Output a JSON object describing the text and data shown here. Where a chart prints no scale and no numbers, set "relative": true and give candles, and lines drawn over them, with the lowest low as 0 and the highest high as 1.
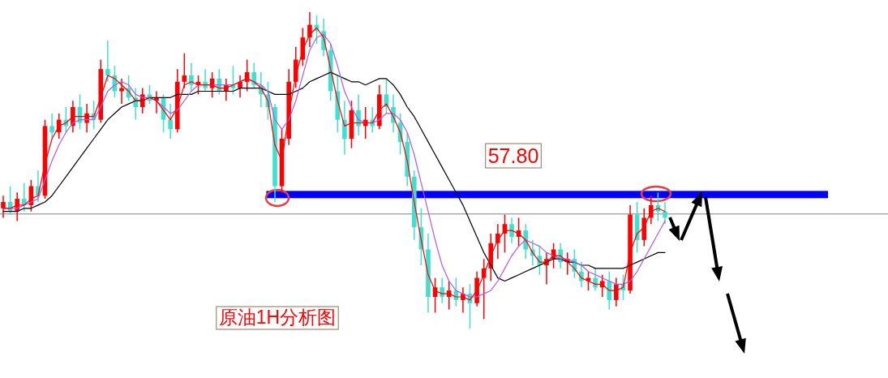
{
  "chart_data": {
    "type": "candlestick",
    "title": "原油1H分析图",
    "relative": true,
    "annotations": [
      "57.80"
    ],
    "bands": [
      {
        "axis": "y",
        "from": 0.412,
        "to": 0.435,
        "color": "#0000ff"
      }
    ],
    "categories": [
      null,
      null,
      null,
      null,
      null,
      null,
      null,
      null,
      null,
      null,
      null,
      null,
      null,
      null,
      null,
      null,
      null,
      null,
      null,
      null,
      null,
      null,
      null,
      null,
      null,
      null,
      null,
      null,
      null,
      null,
      null,
      null,
      null,
      null,
      null,
      null,
      null,
      null,
      null,
      null,
      null,
      null,
      null,
      null,
      null,
      null,
      null,
      null,
      null,
      null,
      null,
      null,
      null,
      null,
      null,
      null,
      null,
      null,
      null,
      null,
      null,
      null,
      null,
      null,
      null,
      null,
      null,
      null,
      null,
      null,
      null,
      null,
      null,
      null,
      null,
      null,
      null,
      null,
      null,
      null,
      null,
      null,
      null,
      null,
      null,
      null,
      null,
      null,
      null,
      null,
      null,
      null,
      null,
      null,
      null,
      null
    ],
    "ohlc": [
      [
        0.38,
        0.42,
        0.35,
        0.4
      ],
      [
        0.4,
        0.45,
        0.36,
        0.37
      ],
      [
        0.37,
        0.43,
        0.34,
        0.41
      ],
      [
        0.41,
        0.46,
        0.37,
        0.39
      ],
      [
        0.39,
        0.47,
        0.37,
        0.45
      ],
      [
        0.45,
        0.5,
        0.4,
        0.42
      ],
      [
        0.42,
        0.66,
        0.41,
        0.64
      ],
      [
        0.64,
        0.68,
        0.6,
        0.62
      ],
      [
        0.62,
        0.68,
        0.6,
        0.66
      ],
      [
        0.66,
        0.7,
        0.62,
        0.64
      ],
      [
        0.64,
        0.72,
        0.62,
        0.7
      ],
      [
        0.7,
        0.74,
        0.63,
        0.65
      ],
      [
        0.65,
        0.71,
        0.62,
        0.68
      ],
      [
        0.68,
        0.72,
        0.63,
        0.66
      ],
      [
        0.66,
        0.85,
        0.65,
        0.82
      ],
      [
        0.82,
        0.91,
        0.78,
        0.8
      ],
      [
        0.8,
        0.83,
        0.73,
        0.75
      ],
      [
        0.75,
        0.79,
        0.71,
        0.76
      ],
      [
        0.76,
        0.8,
        0.72,
        0.73
      ],
      [
        0.73,
        0.76,
        0.66,
        0.7
      ],
      [
        0.7,
        0.76,
        0.68,
        0.74
      ],
      [
        0.74,
        0.77,
        0.71,
        0.72
      ],
      [
        0.72,
        0.75,
        0.68,
        0.73
      ],
      [
        0.73,
        0.74,
        0.62,
        0.66
      ],
      [
        0.66,
        0.71,
        0.6,
        0.63
      ],
      [
        0.63,
        0.82,
        0.62,
        0.78
      ],
      [
        0.78,
        0.87,
        0.76,
        0.8
      ],
      [
        0.8,
        0.84,
        0.75,
        0.77
      ],
      [
        0.77,
        0.8,
        0.74,
        0.78
      ],
      [
        0.78,
        0.82,
        0.75,
        0.76
      ],
      [
        0.76,
        0.81,
        0.73,
        0.79
      ],
      [
        0.79,
        0.82,
        0.74,
        0.75
      ],
      [
        0.75,
        0.79,
        0.72,
        0.77
      ],
      [
        0.77,
        0.83,
        0.74,
        0.76
      ],
      [
        0.76,
        0.8,
        0.73,
        0.78
      ],
      [
        0.78,
        0.85,
        0.75,
        0.81
      ],
      [
        0.81,
        0.84,
        0.76,
        0.77
      ],
      [
        0.77,
        0.81,
        0.7,
        0.74
      ],
      [
        0.74,
        0.78,
        0.66,
        0.7
      ],
      [
        0.7,
        0.71,
        0.4,
        0.45
      ],
      [
        0.45,
        0.63,
        0.43,
        0.6
      ],
      [
        0.6,
        0.82,
        0.58,
        0.78
      ],
      [
        0.78,
        0.89,
        0.76,
        0.85
      ],
      [
        0.85,
        0.95,
        0.83,
        0.92
      ],
      [
        0.92,
        1.0,
        0.89,
        0.96
      ],
      [
        0.96,
        0.99,
        0.9,
        0.94
      ],
      [
        0.94,
        0.98,
        0.86,
        0.88
      ],
      [
        0.88,
        0.9,
        0.72,
        0.75
      ],
      [
        0.75,
        0.8,
        0.62,
        0.66
      ],
      [
        0.66,
        0.72,
        0.55,
        0.6
      ],
      [
        0.6,
        0.72,
        0.57,
        0.69
      ],
      [
        0.69,
        0.74,
        0.61,
        0.64
      ],
      [
        0.64,
        0.7,
        0.6,
        0.66
      ],
      [
        0.66,
        0.7,
        0.62,
        0.64
      ],
      [
        0.64,
        0.77,
        0.63,
        0.74
      ],
      [
        0.74,
        0.79,
        0.68,
        0.7
      ],
      [
        0.7,
        0.74,
        0.62,
        0.65
      ],
      [
        0.65,
        0.68,
        0.55,
        0.59
      ],
      [
        0.59,
        0.62,
        0.45,
        0.48
      ],
      [
        0.48,
        0.5,
        0.28,
        0.32
      ],
      [
        0.32,
        0.38,
        0.2,
        0.25
      ],
      [
        0.25,
        0.3,
        0.05,
        0.1
      ],
      [
        0.1,
        0.16,
        0.05,
        0.13
      ],
      [
        0.13,
        0.16,
        0.08,
        0.1
      ],
      [
        0.1,
        0.15,
        0.06,
        0.12
      ],
      [
        0.12,
        0.16,
        0.07,
        0.09
      ],
      [
        0.09,
        0.13,
        0.05,
        0.11
      ],
      [
        0.11,
        0.14,
        0,
        0.08
      ],
      [
        0.08,
        0.18,
        0.07,
        0.16
      ],
      [
        0.16,
        0.22,
        0.03,
        0.19
      ],
      [
        0.19,
        0.3,
        0.15,
        0.27
      ],
      [
        0.27,
        0.33,
        0.22,
        0.3
      ],
      [
        0.3,
        0.36,
        0.24,
        0.33
      ],
      [
        0.33,
        0.35,
        0.27,
        0.29
      ],
      [
        0.29,
        0.35,
        0.26,
        0.31
      ],
      [
        0.31,
        0.33,
        0.22,
        0.25
      ],
      [
        0.25,
        0.28,
        0.2,
        0.23
      ],
      [
        0.23,
        0.26,
        0.17,
        0.2
      ],
      [
        0.2,
        0.24,
        0.14,
        0.22
      ],
      [
        0.22,
        0.27,
        0.19,
        0.25
      ],
      [
        0.25,
        0.27,
        0.19,
        0.21
      ],
      [
        0.21,
        0.24,
        0.17,
        0.22
      ],
      [
        0.22,
        0.25,
        0.16,
        0.18
      ],
      [
        0.18,
        0.21,
        0.13,
        0.15
      ],
      [
        0.15,
        0.18,
        0.12,
        0.16
      ],
      [
        0.16,
        0.19,
        0.12,
        0.13
      ],
      [
        0.13,
        0.17,
        0.1,
        0.15
      ],
      [
        0.15,
        0.18,
        0.06,
        0.09
      ],
      [
        0.09,
        0.16,
        0.07,
        0.14
      ],
      [
        0.14,
        0.17,
        0.09,
        0.12
      ],
      [
        0.12,
        0.39,
        0.11,
        0.36
      ],
      [
        0.36,
        0.4,
        0.24,
        0.28
      ],
      [
        0.28,
        0.38,
        0.26,
        0.35
      ],
      [
        0.35,
        0.42,
        0.33,
        0.39
      ],
      [
        0.39,
        0.43,
        0.34,
        0.37
      ],
      [
        0.37,
        0.4,
        0.33,
        0.35
      ]
    ],
    "colors": [
      "#ff0000",
      "#40e0d0",
      "#ff0000",
      "#40e0d0",
      "#ff0000",
      "#40e0d0",
      "#ff0000",
      "#40e0d0",
      "#ff0000",
      "#40e0d0",
      "#ff0000",
      "#40e0d0",
      "#ff0000",
      "#40e0d0",
      "#ff0000",
      "#40e0d0",
      "#40e0d0",
      "#ff0000",
      "#40e0d0",
      "#40e0d0",
      "#ff0000",
      "#40e0d0",
      "#ff0000",
      "#40e0d0",
      "#40e0d0",
      "#ff0000",
      "#ff0000",
      "#40e0d0",
      "#ff0000",
      "#40e0d0",
      "#ff0000",
      "#40e0d0",
      "#ff0000",
      "#40e0d0",
      "#ff0000",
      "#ff0000",
      "#40e0d0",
      "#40e0d0",
      "#40e0d0",
      "#40e0d0",
      "#ff0000",
      "#ff0000",
      "#ff0000",
      "#ff0000",
      "#ff0000",
      "#40e0d0",
      "#40e0d0",
      "#40e0d0",
      "#40e0d0",
      "#40e0d0",
      "#ff0000",
      "#40e0d0",
      "#ff0000",
      "#40e0d0",
      "#ff0000",
      "#40e0d0",
      "#40e0d0",
      "#40e0d0",
      "#40e0d0",
      "#40e0d0",
      "#40e0d0",
      "#40e0d0",
      "#ff0000",
      "#40e0d0",
      "#ff0000",
      "#40e0d0",
      "#ff0000",
      "#40e0d0",
      "#ff0000",
      "#ff0000",
      "#ff0000",
      "#ff0000",
      "#ff0000",
      "#40e0d0",
      "#ff0000",
      "#40e0d0",
      "#40e0d0",
      "#40e0d0",
      "#ff0000",
      "#ff0000",
      "#40e0d0",
      "#ff0000",
      "#40e0d0",
      "#40e0d0",
      "#ff0000",
      "#40e0d0",
      "#ff0000",
      "#40e0d0",
      "#ff0000",
      "#40e0d0",
      "#ff0000",
      "#40e0d0",
      "#ff0000",
      "#ff0000",
      "#40e0d0",
      "#40e0d0"
    ],
    "series": [
      {
        "type": "line",
        "color": "#000000",
        "values": [
          0.37,
          0.37,
          0.37,
          0.38,
          0.38,
          0.39,
          0.4,
          0.42,
          0.45,
          0.48,
          0.51,
          0.54,
          0.57,
          0.6,
          0.63,
          0.66,
          0.68,
          0.7,
          0.71,
          0.72,
          0.72,
          0.73,
          0.73,
          0.73,
          0.73,
          0.74,
          0.74,
          0.74,
          0.75,
          0.75,
          0.75,
          0.75,
          0.75,
          0.75,
          0.76,
          0.76,
          0.76,
          0.76,
          0.75,
          0.74,
          0.74,
          0.74,
          0.75,
          0.76,
          0.78,
          0.79,
          0.8,
          0.81,
          0.8,
          0.79,
          0.78,
          0.78,
          0.77,
          0.78,
          0.79,
          0.79,
          0.77,
          0.74,
          0.7,
          0.67,
          0.63,
          0.59,
          0.55,
          0.51,
          0.47,
          0.43,
          0.39,
          0.34,
          0.29,
          0.24,
          0.2,
          0.16,
          0.15,
          0.16,
          0.17,
          0.18,
          0.19,
          0.2,
          0.21,
          0.22,
          0.22,
          0.21,
          0.21,
          0.2,
          0.2,
          0.19,
          0.19,
          0.19,
          0.19,
          0.19,
          0.2,
          0.21,
          0.22,
          0.23,
          0.24,
          0.24
        ]
      },
      {
        "type": "line",
        "color": "#b45ae6",
        "values": [
          0.38,
          0.38,
          0.38,
          0.39,
          0.4,
          0.41,
          0.47,
          0.53,
          0.58,
          0.62,
          0.65,
          0.66,
          0.66,
          0.66,
          0.7,
          0.75,
          0.77,
          0.78,
          0.77,
          0.74,
          0.73,
          0.73,
          0.72,
          0.7,
          0.68,
          0.69,
          0.72,
          0.75,
          0.77,
          0.77,
          0.77,
          0.77,
          0.77,
          0.77,
          0.78,
          0.79,
          0.78,
          0.77,
          0.75,
          0.66,
          0.63,
          0.66,
          0.72,
          0.8,
          0.88,
          0.92,
          0.93,
          0.9,
          0.83,
          0.75,
          0.7,
          0.66,
          0.65,
          0.65,
          0.66,
          0.68,
          0.68,
          0.66,
          0.62,
          0.55,
          0.46,
          0.37,
          0.28,
          0.2,
          0.15,
          0.12,
          0.11,
          0.1,
          0.1,
          0.11,
          0.12,
          0.15,
          0.19,
          0.23,
          0.26,
          0.28,
          0.27,
          0.26,
          0.24,
          0.23,
          0.22,
          0.22,
          0.21,
          0.2,
          0.18,
          0.17,
          0.16,
          0.15,
          0.14,
          0.14,
          0.15,
          0.18,
          0.22,
          0.26,
          0.3,
          0.34
        ]
      },
      {
        "type": "line",
        "color": "#ff0000",
        "values": [
          0.38,
          0.38,
          0.39,
          0.39,
          0.41,
          0.42,
          0.52,
          0.6,
          0.64,
          0.65,
          0.67,
          0.67,
          0.67,
          0.67,
          0.73,
          0.8,
          0.79,
          0.77,
          0.75,
          0.72,
          0.72,
          0.73,
          0.72,
          0.69,
          0.66,
          0.7,
          0.77,
          0.78,
          0.77,
          0.77,
          0.77,
          0.76,
          0.76,
          0.77,
          0.78,
          0.79,
          0.78,
          0.76,
          0.72,
          0.58,
          0.53,
          0.68,
          0.8,
          0.88,
          0.93,
          0.95,
          0.92,
          0.82,
          0.72,
          0.64,
          0.65,
          0.65,
          0.65,
          0.65,
          0.69,
          0.71,
          0.67,
          0.62,
          0.53,
          0.4,
          0.28,
          0.17,
          0.12,
          0.11,
          0.11,
          0.1,
          0.1,
          0.09,
          0.12,
          0.17,
          0.23,
          0.28,
          0.31,
          0.31,
          0.3,
          0.28,
          0.24,
          0.21,
          0.21,
          0.23,
          0.23,
          0.21,
          0.19,
          0.16,
          0.15,
          0.14,
          0.14,
          0.12,
          0.12,
          0.13,
          0.24,
          0.3,
          0.32,
          0.37,
          0.38,
          0.37
        ]
      }
    ],
    "ref_lines": [
      {
        "axis": "y",
        "value": 0.362,
        "color": "#808080"
      }
    ]
  }
}
